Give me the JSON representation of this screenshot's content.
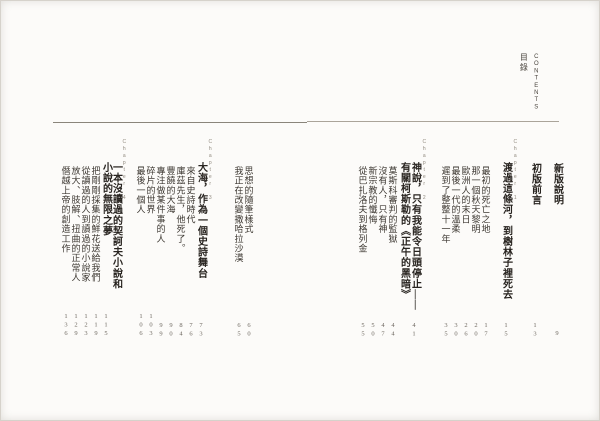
{
  "page_header": {
    "title_cjk": "目錄",
    "title_latin": "CONTENTS"
  },
  "front_matter": [
    {
      "label": "新版說明",
      "page": "9"
    },
    {
      "label": "初版前言",
      "page": "13"
    }
  ],
  "chapters": [
    {
      "chapter_label": "Chapter 1",
      "title_lines": [
        "渡過這條河，到樹林子裡死去"
      ],
      "title_page": "15",
      "items": [
        {
          "label": "最初的死亡之地",
          "page": "17"
        },
        {
          "label": "那一個秋天黎明",
          "page": "20"
        },
        {
          "label": "歐洲人的末日",
          "page": "26"
        },
        {
          "label": "最後一代的溫柔",
          "page": "30"
        },
        {
          "label": "遲到了整整十一年",
          "page": "35"
        }
      ]
    },
    {
      "chapter_label": "Chapter 2",
      "title_lines": [
        "神說，只有我能令日頭停止——",
        "有關柯斯勒的《正午的黑暗》"
      ],
      "title_page": "41",
      "items": [
        {
          "label": "莫斯科審判的監獄",
          "page": "44"
        },
        {
          "label": "沒有人，只有神",
          "page": "47"
        },
        {
          "label": "新宗教的懺悔",
          "page": "50"
        },
        {
          "label": "從巴扎洛夫到格列金",
          "page": "55"
        },
        {
          "label": "思想的隨筆樣式",
          "page": "60"
        },
        {
          "label": "我正在改變撒哈拉沙漠",
          "page": "65"
        }
      ]
    },
    {
      "chapter_label": "Chapter 3",
      "title_lines": [
        "大海，作為一個史詩舞台"
      ],
      "title_page": "73",
      "items": [
        {
          "label": "來自史詩時代",
          "page": "76"
        },
        {
          "label": "庫茲先生，他死了。",
          "page": "84"
        },
        {
          "label": "豐饒的大海",
          "page": "90"
        },
        {
          "label": "專注做某件事的人",
          "page": "99"
        },
        {
          "label": "碎片的世界",
          "page": "103"
        },
        {
          "label": "最後一個人",
          "page": "106"
        }
      ]
    },
    {
      "chapter_label": "Chapter 4",
      "title_lines": [
        "一本沒讀過的契訶夫小說和",
        "小說的無限之夢"
      ],
      "title_page": "115",
      "items": [
        {
          "label": "把剛剛採集的鮮花送給我們",
          "page": "119"
        },
        {
          "label": "從讀過的人到讀過的小說家",
          "page": "123"
        },
        {
          "label": "放大、肢解、扭曲的正常人",
          "page": "129"
        },
        {
          "label": "僭越上帝的創造工作",
          "page": "136"
        }
      ]
    }
  ],
  "colors": {
    "text": "#27231f",
    "muted": "#6e6860",
    "rule_dark": "#8a857b",
    "rule_light": "#aaa49a",
    "background": "#fcfbf9"
  }
}
